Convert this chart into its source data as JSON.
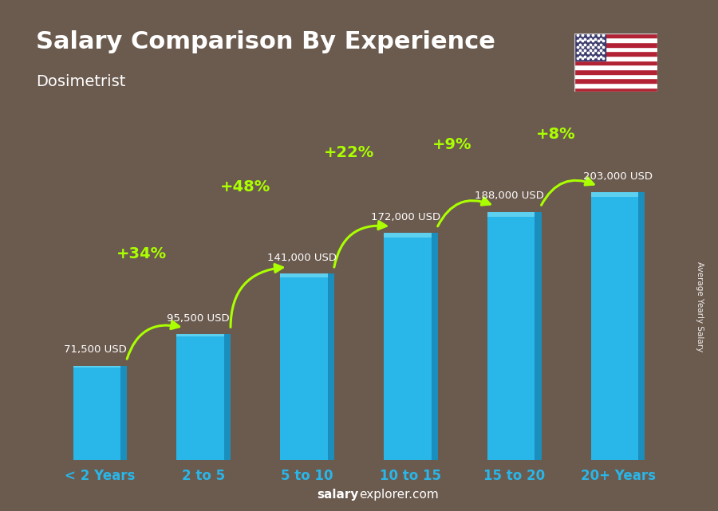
{
  "title": "Salary Comparison By Experience",
  "subtitle": "Dosimetrist",
  "categories": [
    "< 2 Years",
    "2 to 5",
    "5 to 10",
    "10 to 15",
    "15 to 20",
    "20+ Years"
  ],
  "values": [
    71500,
    95500,
    141000,
    172000,
    188000,
    203000
  ],
  "salary_labels": [
    "71,500 USD",
    "95,500 USD",
    "141,000 USD",
    "172,000 USD",
    "188,000 USD",
    "203,000 USD"
  ],
  "pct_labels": [
    "+34%",
    "+48%",
    "+22%",
    "+9%",
    "+8%"
  ],
  "bar_color": "#29B6E8",
  "bar_color_dark": "#1A8FBD",
  "pct_color": "#AAFF00",
  "text_color": "#FFFFFF",
  "title_color": "#FFFFFF",
  "ylabel_text": "Average Yearly Salary",
  "footer_bold": "salary",
  "footer_normal": "explorer.com",
  "bg_color": "#6B5A4E",
  "ylim": [
    0,
    240000
  ],
  "bar_width": 0.52
}
